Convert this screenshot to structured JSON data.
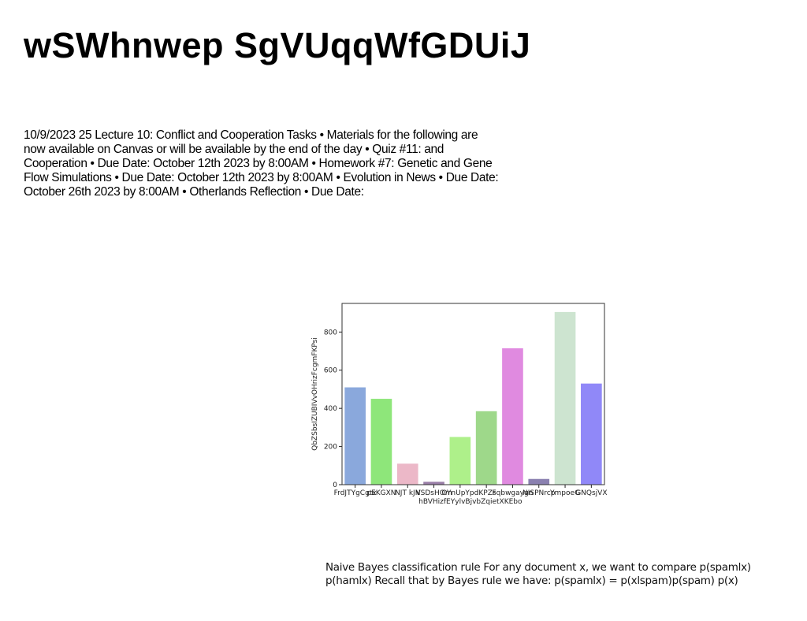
{
  "header": {
    "title": "wSWhnwep SgVUqqWfGDUiJ"
  },
  "body": {
    "text": "10/9/2023 25 Lecture 10: Conflict and Cooperation Tasks • Materials for the following are now available on Canvas or will be available by the end of the day • Quiz #11: and Cooperation • Due Date: October 12th 2023 by 8:00AM • Homework #7: Genetic and Gene Flow Simulations • Due Date: October 12th 2023 by 8:00AM • Evolution in News • Due Date: October 26th 2023 by 8:00AM • Otherlands Reflection • Due Date:"
  },
  "note": {
    "text": "Naive Bayes classification rule For any document x, we want to compare p(spamlx) p(hamlx) Recall that by Bayes rule we have: p(spamlx) = p(xlspam)p(spam) p(x)"
  },
  "chart_data": {
    "type": "bar",
    "y_label": "QbZSbsIZUBIVvOHrizFcgmFKPsi",
    "categories": [
      "FrdJTYgCgtx",
      "pEKGXN",
      "NJT kJN",
      "VSDsHOm",
      "OYnUpYpd\nhBVHizfEYylvBjvbZqietXKEbo",
      "IKPZs",
      "Fqbwgaygn",
      "NISPNrcp",
      "YmpoeG",
      "GNQsjVX"
    ],
    "values": [
      510,
      450,
      110,
      15,
      250,
      385,
      715,
      30,
      905,
      530
    ],
    "colors": [
      "#8aa8dc",
      "#8ee67a",
      "#ecb8c8",
      "#9a7ea8",
      "#aef08a",
      "#9ed88a",
      "#e08ae0",
      "#8a80b0",
      "#cde4d0",
      "#9088f8"
    ],
    "ylim": [
      0,
      950
    ],
    "yticks": [
      0,
      200,
      400,
      600,
      800
    ]
  }
}
